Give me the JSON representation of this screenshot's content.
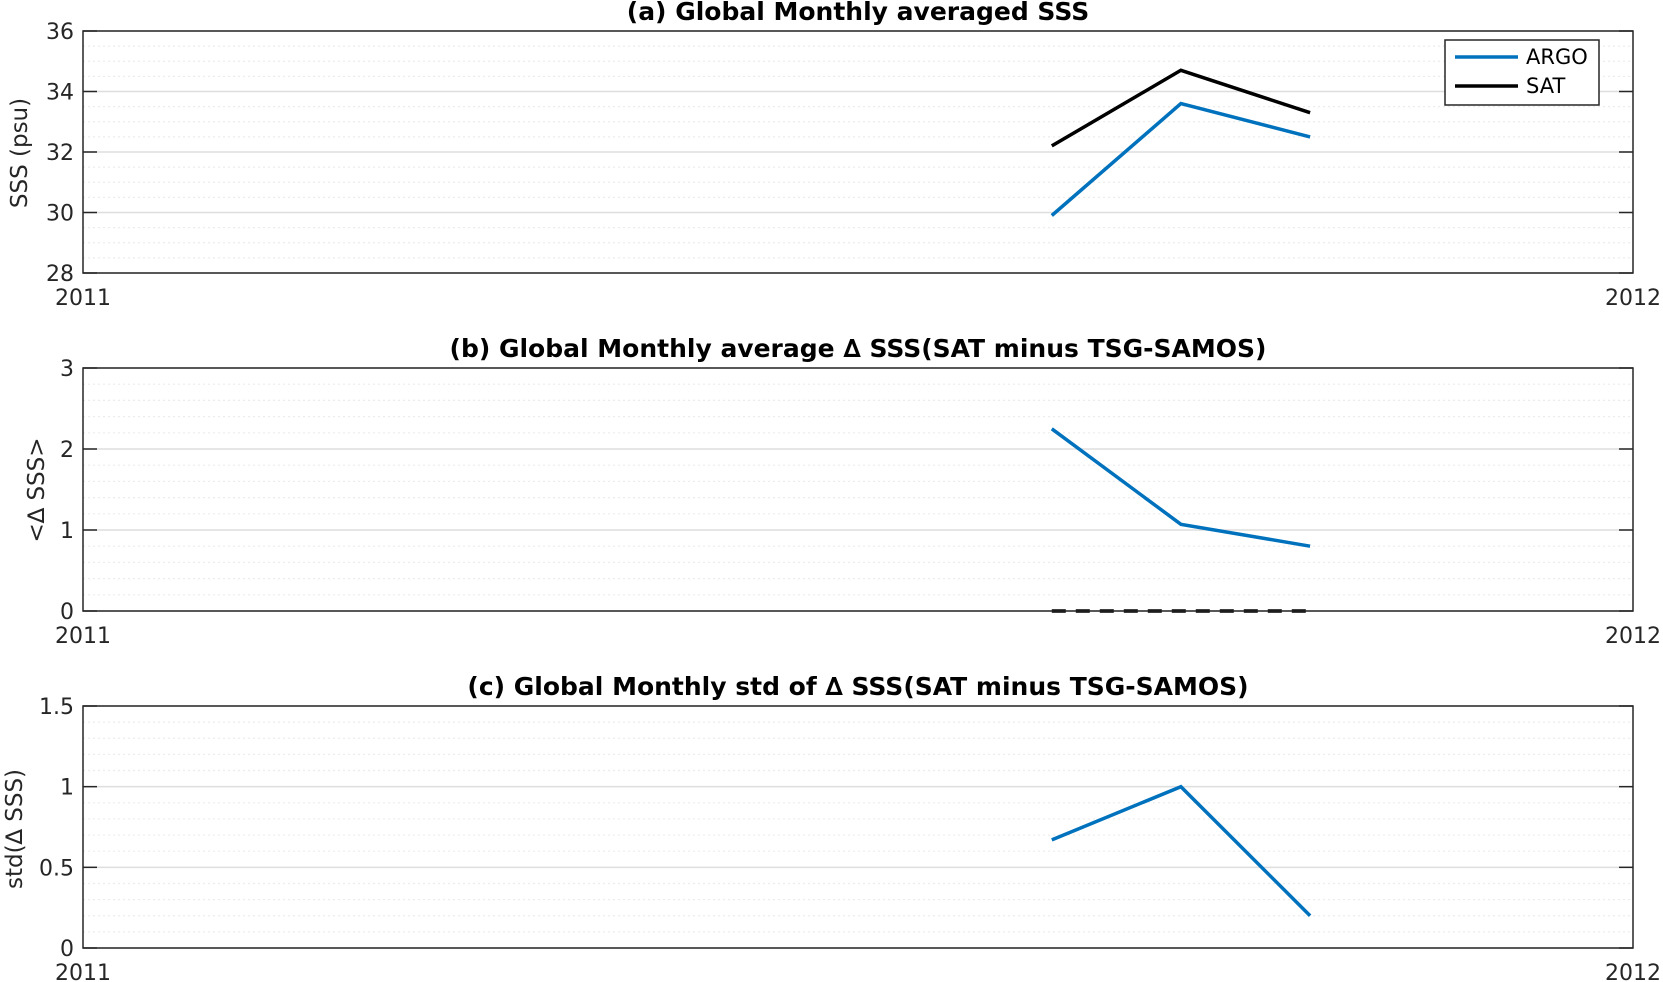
{
  "figure": {
    "background": "#ffffff",
    "colors": {
      "argo": "#0072BD",
      "sat": "#000000",
      "axis": "#262626",
      "grid_major": "#dedede",
      "grid_minor": "#ececec"
    }
  },
  "chart_data": [
    {
      "type": "line",
      "title": "(a) Global Monthly averaged SSS",
      "xlabel": "",
      "ylabel": "SSS (psu)",
      "xlim": [
        0,
        12
      ],
      "ylim": [
        28,
        36
      ],
      "x_tick_labels": [
        "2011",
        "2012"
      ],
      "y_ticks": [
        "28",
        "30",
        "32",
        "34",
        "36"
      ],
      "grid": "on",
      "minor_grid": "on",
      "legend": {
        "placement": "top-right",
        "entries": [
          "ARGO",
          "SAT"
        ]
      },
      "series": [
        {
          "name": "ARGO",
          "color": "#0072BD",
          "style": "solid",
          "x": [
            7.5,
            8.5,
            9.5
          ],
          "y": [
            29.9,
            33.6,
            32.5
          ]
        },
        {
          "name": "SAT",
          "color": "#000000",
          "style": "solid",
          "x": [
            7.5,
            8.5,
            9.5
          ],
          "y": [
            32.2,
            34.7,
            33.3
          ]
        }
      ]
    },
    {
      "type": "line",
      "title": "(b) Global Monthly average ∆ SSS(SAT minus TSG-SAMOS)",
      "xlabel": "",
      "ylabel": "<∆ SSS>",
      "xlim": [
        0,
        12
      ],
      "ylim": [
        0,
        3
      ],
      "x_tick_labels": [
        "2011",
        "2012"
      ],
      "y_ticks": [
        "0",
        "1",
        "2",
        "3"
      ],
      "grid": "on",
      "minor_grid": "on",
      "series": [
        {
          "color": "#0072BD",
          "style": "solid",
          "x": [
            7.5,
            8.5,
            9.5
          ],
          "y": [
            2.25,
            1.07,
            0.8
          ]
        },
        {
          "color": "#000000",
          "style": "dashed",
          "x": [
            7.5,
            8.5,
            9.5
          ],
          "y": [
            0,
            0,
            0
          ]
        }
      ]
    },
    {
      "type": "line",
      "title": "(c) Global Monthly std of ∆ SSS(SAT minus TSG-SAMOS)",
      "xlabel": "",
      "ylabel": "std(∆ SSS)",
      "xlim": [
        0,
        12
      ],
      "ylim": [
        0,
        1.5
      ],
      "x_tick_labels": [
        "2011",
        "2012"
      ],
      "y_ticks": [
        "0",
        "0.5",
        "1",
        "1.5"
      ],
      "grid": "on",
      "minor_grid": "on",
      "series": [
        {
          "color": "#0072BD",
          "style": "solid",
          "x": [
            7.5,
            8.5,
            9.5
          ],
          "y": [
            0.67,
            1.0,
            0.2
          ]
        }
      ]
    }
  ]
}
